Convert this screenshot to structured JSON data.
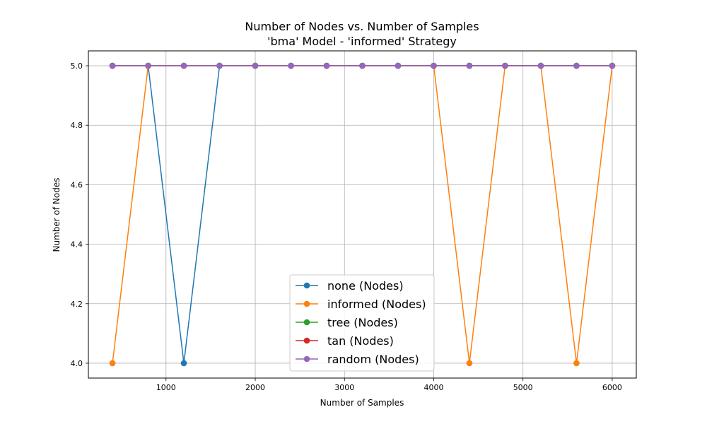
{
  "chart_data": {
    "type": "line",
    "title": "Number of Nodes vs. Number of Samples",
    "subtitle": "'bma' Model - 'informed' Strategy",
    "xlabel": "Number of Samples",
    "ylabel": "Number of Nodes",
    "xlim": [
      130,
      6270
    ],
    "ylim": [
      3.95,
      5.05
    ],
    "xticks": [
      1000,
      2000,
      3000,
      4000,
      5000,
      6000
    ],
    "yticks": [
      4.0,
      4.2,
      4.4,
      4.6,
      4.8,
      5.0
    ],
    "ytick_labels": [
      "4.0",
      "4.2",
      "4.4",
      "4.6",
      "4.8",
      "5.0"
    ],
    "grid": true,
    "legend_position": "lower-center",
    "x": [
      400,
      800,
      1200,
      1600,
      2000,
      2400,
      2800,
      3200,
      3600,
      4000,
      4400,
      4800,
      5200,
      5600,
      6000
    ],
    "series": [
      {
        "name": "none (Nodes)",
        "color": "#1f77b4",
        "values": [
          5,
          5,
          4,
          5,
          5,
          5,
          5,
          5,
          5,
          5,
          5,
          5,
          5,
          5,
          5
        ]
      },
      {
        "name": "informed (Nodes)",
        "color": "#ff7f0e",
        "values": [
          4,
          5,
          5,
          5,
          5,
          5,
          5,
          5,
          5,
          5,
          4,
          5,
          5,
          4,
          5
        ]
      },
      {
        "name": "tree (Nodes)",
        "color": "#2ca02c",
        "values": [
          5,
          5,
          5,
          5,
          5,
          5,
          5,
          5,
          5,
          5,
          5,
          5,
          5,
          5,
          5
        ]
      },
      {
        "name": "tan (Nodes)",
        "color": "#d62728",
        "values": [
          5,
          5,
          5,
          5,
          5,
          5,
          5,
          5,
          5,
          5,
          5,
          5,
          5,
          5,
          5
        ]
      },
      {
        "name": "random (Nodes)",
        "color": "#9467bd",
        "values": [
          5,
          5,
          5,
          5,
          5,
          5,
          5,
          5,
          5,
          5,
          5,
          5,
          5,
          5,
          5
        ]
      }
    ]
  }
}
